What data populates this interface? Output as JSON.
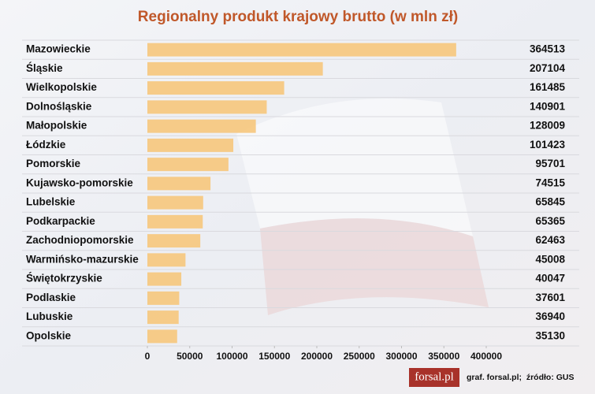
{
  "chart_data": {
    "type": "hbar",
    "title": "Regionalny produkt krajowy brutto (w mln zł)",
    "categories": [
      "Mazowieckie",
      "Śląskie",
      "Wielkopolskie",
      "Dolnośląskie",
      "Małopolskie",
      "Łódzkie",
      "Pomorskie",
      "Kujawsko-pomorskie",
      "Lubelskie",
      "Podkarpackie",
      "Zachodniopomorskie",
      "Warmińsko-mazurskie",
      "Świętokrzyskie",
      "Podlaskie",
      "Lubuskie",
      "Opolskie"
    ],
    "values": [
      364513,
      207104,
      161485,
      140901,
      128009,
      101423,
      95701,
      74515,
      65845,
      65365,
      62463,
      45008,
      40047,
      37601,
      36940,
      35130
    ],
    "color": "#f6c77c",
    "xlim": [
      0,
      400000
    ],
    "xticks": [
      0,
      50000,
      100000,
      150000,
      200000,
      250000,
      300000,
      350000,
      400000
    ],
    "logo": "forsal.pl",
    "source": "graf. forsal.pl;  źródło: GUS"
  }
}
